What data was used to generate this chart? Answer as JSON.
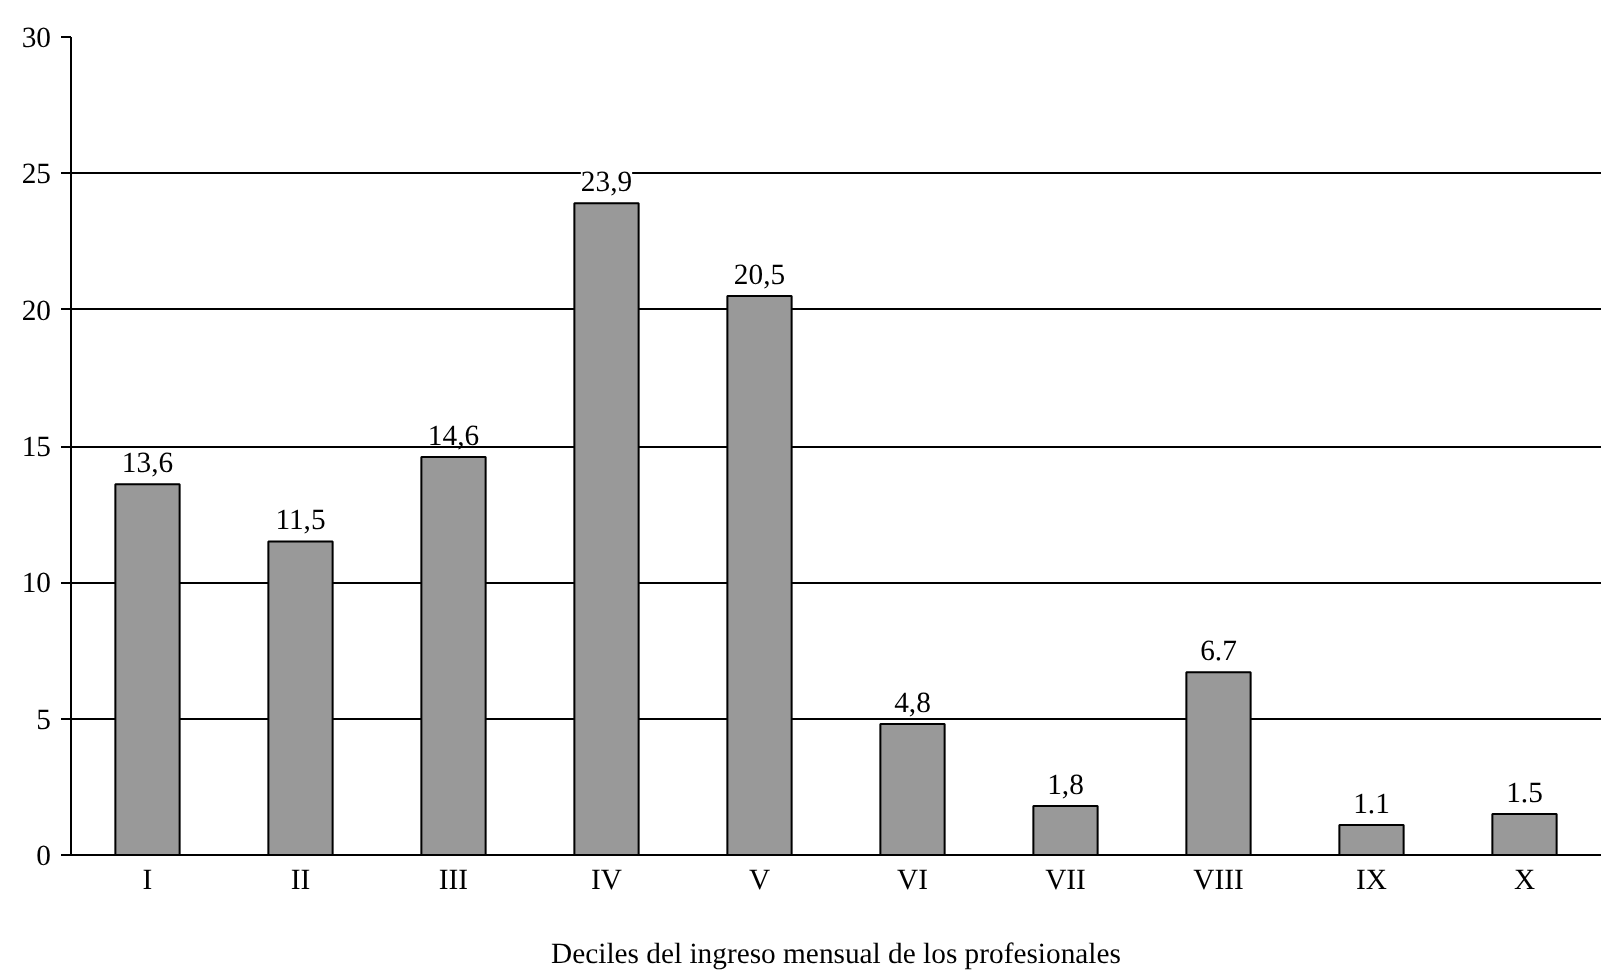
{
  "chart_data": {
    "type": "bar",
    "xlabel": "Deciles del ingreso mensual de los profesionales",
    "categories": [
      "I",
      "II",
      "III",
      "IV",
      "V",
      "VI",
      "VII",
      "VIII",
      "IX",
      "X"
    ],
    "values": [
      13.6,
      11.5,
      14.6,
      23.9,
      20.5,
      4.8,
      1.8,
      6.7,
      1.1,
      1.5
    ],
    "value_labels": [
      "13,6",
      "11,5",
      "14,6",
      "23,9",
      "20,5",
      "4,8",
      "1,8",
      "6.7",
      "1.1",
      "1.5"
    ],
    "color": "#999999",
    "ylim": [
      0,
      30
    ],
    "yticks": [
      0,
      5,
      10,
      15,
      20,
      25,
      30
    ],
    "grid": "y"
  }
}
